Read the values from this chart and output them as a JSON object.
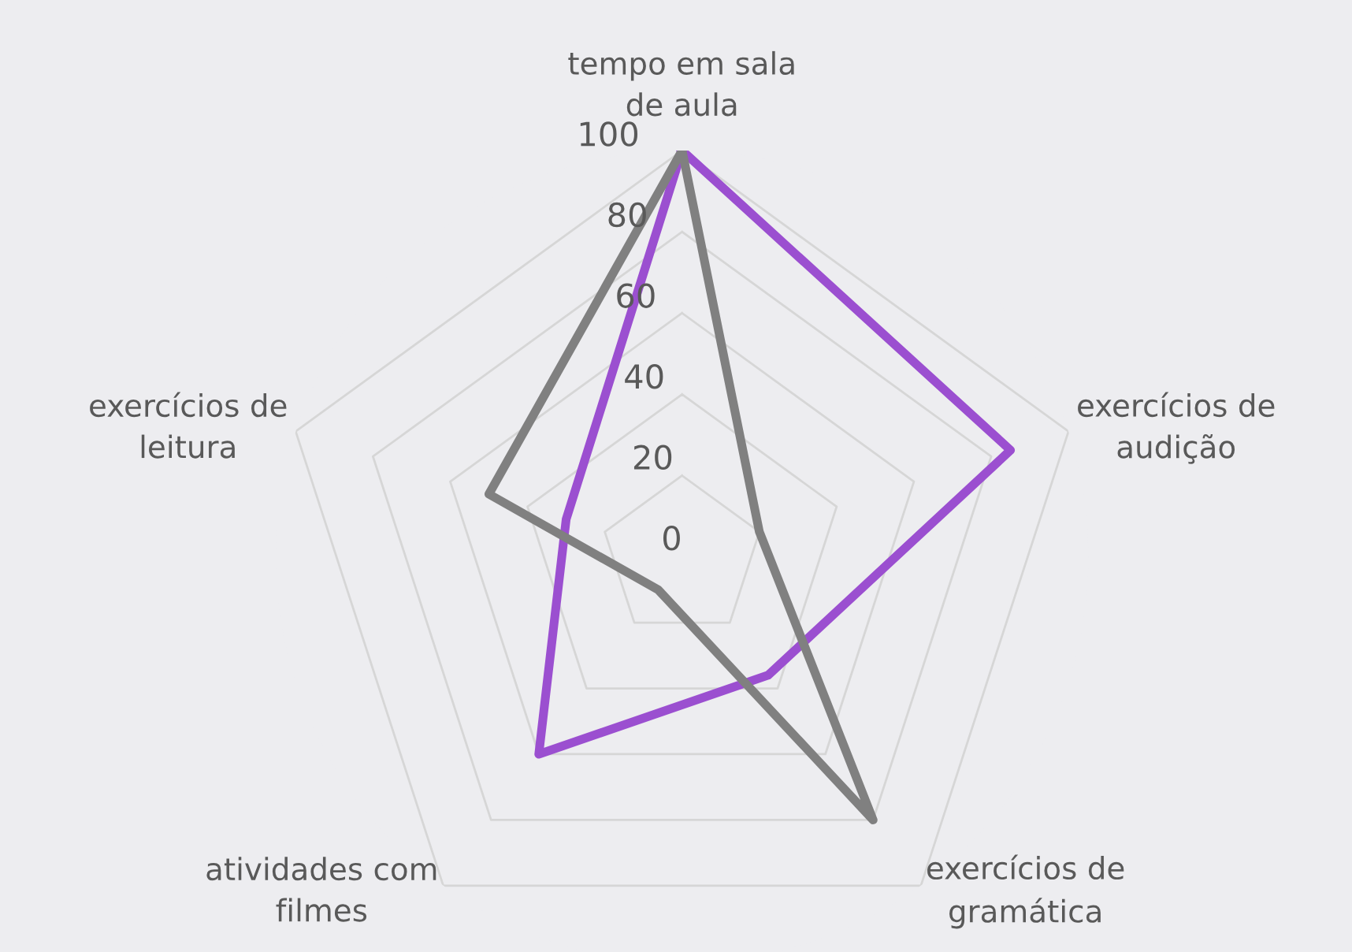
{
  "chart_data": {
    "type": "radar",
    "categories": [
      "tempo em sala\nde aula",
      "exercícios de\naudição",
      "exercícios de\ngramática",
      "atividades com\nfilmes",
      "exercícios de\nleitura"
    ],
    "series": [
      {
        "color": "#9b4fd0",
        "values": [
          100,
          85,
          36,
          60,
          30
        ]
      },
      {
        "color": "#808080",
        "values": [
          100,
          20,
          80,
          10,
          50
        ]
      }
    ],
    "ylim": [
      0,
      100
    ],
    "yticks": [
      0,
      20,
      40,
      60,
      80,
      100
    ],
    "grid": true,
    "marker": "none",
    "line_style": "solid"
  }
}
